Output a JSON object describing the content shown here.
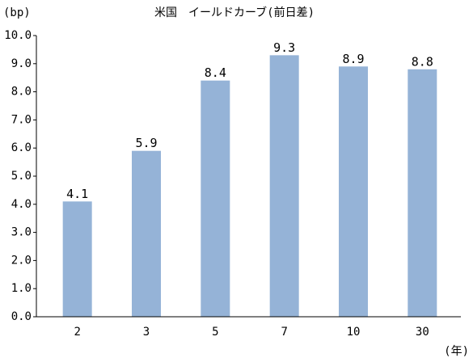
{
  "chart_data": {
    "type": "bar",
    "title": "米国　イールドカーブ(前日差)",
    "y_label": "(bp)",
    "x_label": "(年)",
    "categories": [
      "2",
      "3",
      "5",
      "7",
      "10",
      "30"
    ],
    "values": [
      4.1,
      5.9,
      8.4,
      9.3,
      8.9,
      8.8
    ],
    "color": "#95b3d7",
    "ylim": [
      0,
      10
    ],
    "yticks": [
      {
        "value": 0,
        "label": "0.0"
      },
      {
        "value": 1,
        "label": "1.0"
      },
      {
        "value": 2,
        "label": "2.0"
      },
      {
        "value": 3,
        "label": "3.0"
      },
      {
        "value": 4,
        "label": "4.0"
      },
      {
        "value": 5,
        "label": "5.0"
      },
      {
        "value": 6,
        "label": "6.0"
      },
      {
        "value": 7,
        "label": "7.0"
      },
      {
        "value": 8,
        "label": "8.0"
      },
      {
        "value": 9,
        "label": "9.0"
      },
      {
        "value": 10,
        "label": "10.0"
      }
    ],
    "grid": false
  }
}
